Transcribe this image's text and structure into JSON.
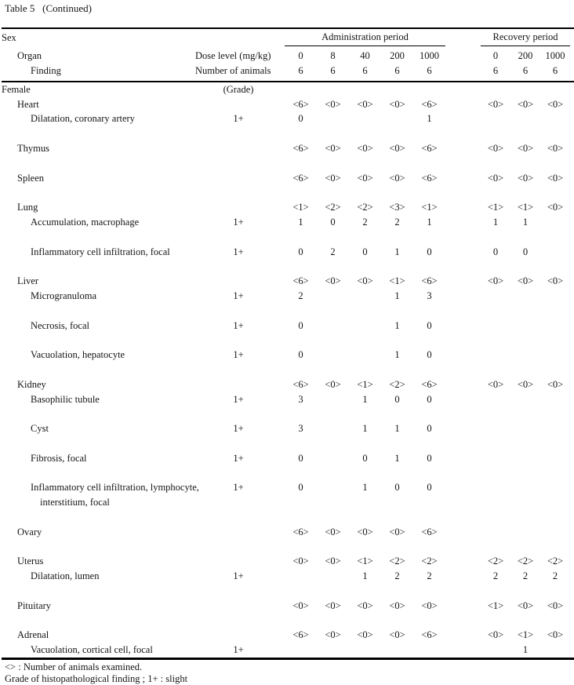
{
  "title": "Table 5   (Continued)",
  "header": {
    "sex_label": "Sex",
    "organ_label": "Organ",
    "finding_label": "Finding",
    "dose_label": "Dose level (mg/kg)",
    "animals_label": "Number of animals",
    "admin_group": "Administration period",
    "recovery_group": "Recovery period",
    "admin_doses": [
      "0",
      "8",
      "40",
      "200",
      "1000"
    ],
    "recovery_doses": [
      "0",
      "200",
      "1000"
    ],
    "admin_counts": [
      "6",
      "6",
      "6",
      "6",
      "6"
    ],
    "recovery_counts": [
      "6",
      "6",
      "6"
    ]
  },
  "rows": [
    {
      "type": "sex",
      "label": "Female",
      "grade": "(Grade)",
      "values": [
        "",
        "",
        "",
        "",
        "",
        "",
        "",
        ""
      ]
    },
    {
      "type": "organ",
      "label": "Heart",
      "grade": "",
      "values": [
        "<6>",
        "<0>",
        "<0>",
        "<0>",
        "<6>",
        "<0>",
        "<0>",
        "<0>"
      ]
    },
    {
      "type": "finding",
      "label": "Dilatation, coronary artery",
      "grade": "1+",
      "values": [
        "0",
        "",
        "",
        "",
        "1",
        "",
        "",
        ""
      ]
    },
    {
      "type": "spacer"
    },
    {
      "type": "organ",
      "label": "Thymus",
      "grade": "",
      "values": [
        "<6>",
        "<0>",
        "<0>",
        "<0>",
        "<6>",
        "<0>",
        "<0>",
        "<0>"
      ]
    },
    {
      "type": "spacer"
    },
    {
      "type": "organ",
      "label": "Spleen",
      "grade": "",
      "values": [
        "<6>",
        "<0>",
        "<0>",
        "<0>",
        "<6>",
        "<0>",
        "<0>",
        "<0>"
      ]
    },
    {
      "type": "spacer"
    },
    {
      "type": "organ",
      "label": "Lung",
      "grade": "",
      "values": [
        "<1>",
        "<2>",
        "<2>",
        "<3>",
        "<1>",
        "<1>",
        "<1>",
        "<0>"
      ]
    },
    {
      "type": "finding",
      "label": "Accumulation, macrophage",
      "grade": "1+",
      "values": [
        "1",
        "0",
        "2",
        "2",
        "1",
        "1",
        "1",
        ""
      ]
    },
    {
      "type": "spacer"
    },
    {
      "type": "finding",
      "label": "Inflammatory cell infiltration, focal",
      "grade": "1+",
      "values": [
        "0",
        "2",
        "0",
        "1",
        "0",
        "0",
        "0",
        ""
      ]
    },
    {
      "type": "spacer"
    },
    {
      "type": "organ",
      "label": "Liver",
      "grade": "",
      "values": [
        "<6>",
        "<0>",
        "<0>",
        "<1>",
        "<6>",
        "<0>",
        "<0>",
        "<0>"
      ]
    },
    {
      "type": "finding",
      "label": "Microgranuloma",
      "grade": "1+",
      "values": [
        "2",
        "",
        "",
        "1",
        "3",
        "",
        "",
        ""
      ]
    },
    {
      "type": "spacer"
    },
    {
      "type": "finding",
      "label": "Necrosis, focal",
      "grade": "1+",
      "values": [
        "0",
        "",
        "",
        "1",
        "0",
        "",
        "",
        ""
      ]
    },
    {
      "type": "spacer"
    },
    {
      "type": "finding",
      "label": "Vacuolation, hepatocyte",
      "grade": "1+",
      "values": [
        "0",
        "",
        "",
        "1",
        "0",
        "",
        "",
        ""
      ]
    },
    {
      "type": "spacer"
    },
    {
      "type": "organ",
      "label": "Kidney",
      "grade": "",
      "values": [
        "<6>",
        "<0>",
        "<1>",
        "<2>",
        "<6>",
        "<0>",
        "<0>",
        "<0>"
      ]
    },
    {
      "type": "finding",
      "label": "Basophilic tubule",
      "grade": "1+",
      "values": [
        "3",
        "",
        "1",
        "0",
        "0",
        "",
        "",
        ""
      ]
    },
    {
      "type": "spacer"
    },
    {
      "type": "finding",
      "label": "Cyst",
      "grade": "1+",
      "values": [
        "3",
        "",
        "1",
        "1",
        "0",
        "",
        "",
        ""
      ]
    },
    {
      "type": "spacer"
    },
    {
      "type": "finding",
      "label": "Fibrosis, focal",
      "grade": "1+",
      "values": [
        "0",
        "",
        "0",
        "1",
        "0",
        "",
        "",
        ""
      ]
    },
    {
      "type": "spacer"
    },
    {
      "type": "finding",
      "label": "Inflammatory cell infiltration, lymphocyte,",
      "grade": "1+",
      "values": [
        "0",
        "",
        "1",
        "0",
        "0",
        "",
        "",
        ""
      ]
    },
    {
      "type": "cont",
      "label": "interstitium, focal",
      "grade": "",
      "values": [
        "",
        "",
        "",
        "",
        "",
        "",
        "",
        ""
      ]
    },
    {
      "type": "spacer"
    },
    {
      "type": "organ",
      "label": "Ovary",
      "grade": "",
      "values": [
        "<6>",
        "<0>",
        "<0>",
        "<0>",
        "<6>",
        "",
        "",
        ""
      ]
    },
    {
      "type": "spacer"
    },
    {
      "type": "organ",
      "label": "Uterus",
      "grade": "",
      "values": [
        "<0>",
        "<0>",
        "<1>",
        "<2>",
        "<2>",
        "<2>",
        "<2>",
        "<2>"
      ]
    },
    {
      "type": "finding",
      "label": "Dilatation, lumen",
      "grade": "1+",
      "values": [
        "",
        "",
        "1",
        "2",
        "2",
        "2",
        "2",
        "2"
      ]
    },
    {
      "type": "spacer"
    },
    {
      "type": "organ",
      "label": "Pituitary",
      "grade": "",
      "values": [
        "<0>",
        "<0>",
        "<0>",
        "<0>",
        "<0>",
        "<1>",
        "<0>",
        "<0>"
      ]
    },
    {
      "type": "spacer"
    },
    {
      "type": "organ",
      "label": "Adrenal",
      "grade": "",
      "values": [
        "<6>",
        "<0>",
        "<0>",
        "<0>",
        "<6>",
        "<0>",
        "<1>",
        "<0>"
      ]
    },
    {
      "type": "finding",
      "label": "Vacuolation, cortical cell, focal",
      "grade": "1+",
      "values": [
        "",
        "",
        "",
        "",
        "",
        "",
        "1",
        ""
      ]
    }
  ],
  "footnotes": [
    "<> : Number of animals examined.",
    "Grade of histopathological finding ;  1+ : slight"
  ],
  "colors": {
    "text": "#151515",
    "background": "#ffffff",
    "rule": "#000000"
  }
}
